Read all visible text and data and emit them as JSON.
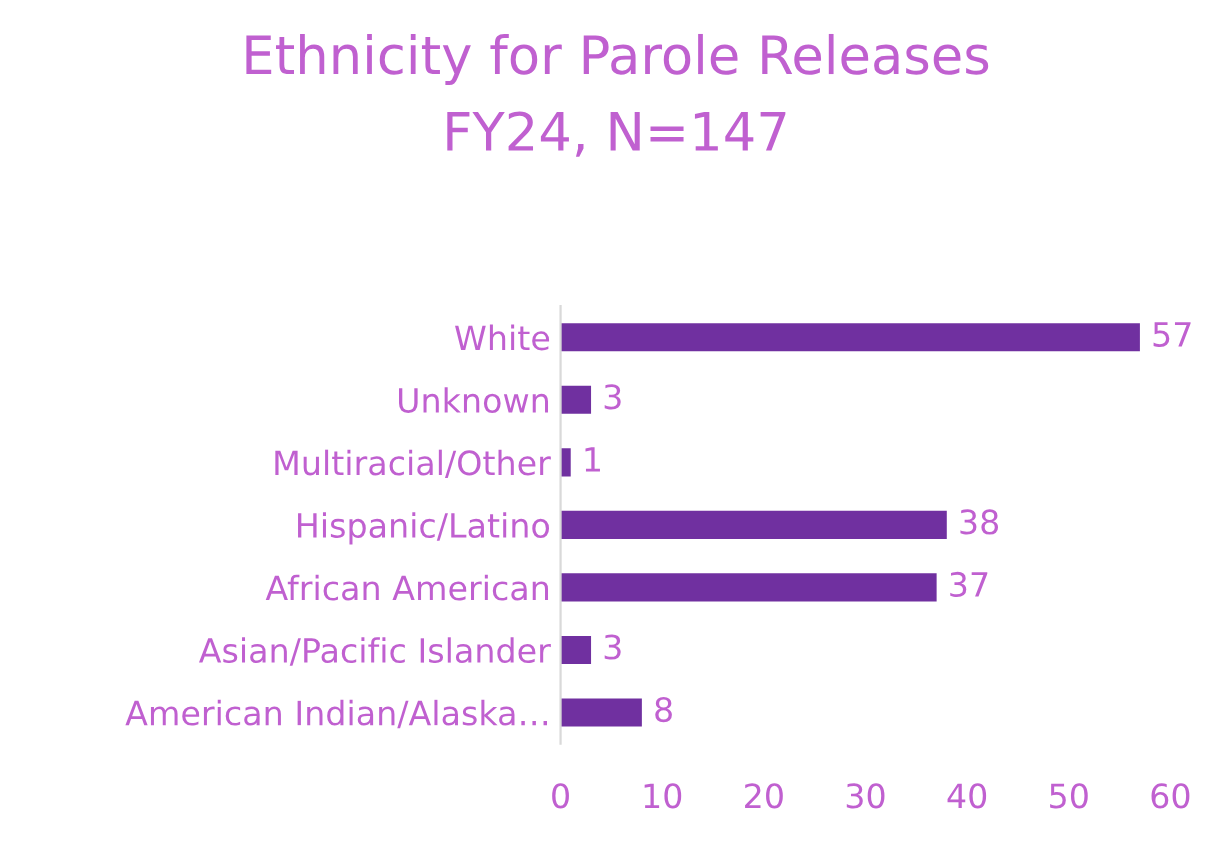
{
  "chart_data": {
    "type": "bar",
    "orientation": "horizontal",
    "title": "Ethnicity for Parole Releases",
    "subtitle": "FY24, N=147",
    "categories": [
      "White",
      "Unknown",
      "Multiracial/Other",
      "Hispanic/Latino",
      "African American",
      "Asian/Pacific Islander",
      "American Indian/Alaska…"
    ],
    "values": [
      57,
      3,
      1,
      38,
      37,
      3,
      8
    ],
    "color": "#7030a0",
    "xlim": [
      0,
      60
    ],
    "xticks": [
      0,
      10,
      20,
      30,
      40,
      50,
      60
    ],
    "grid": false,
    "data_labels": true,
    "legend": false
  }
}
